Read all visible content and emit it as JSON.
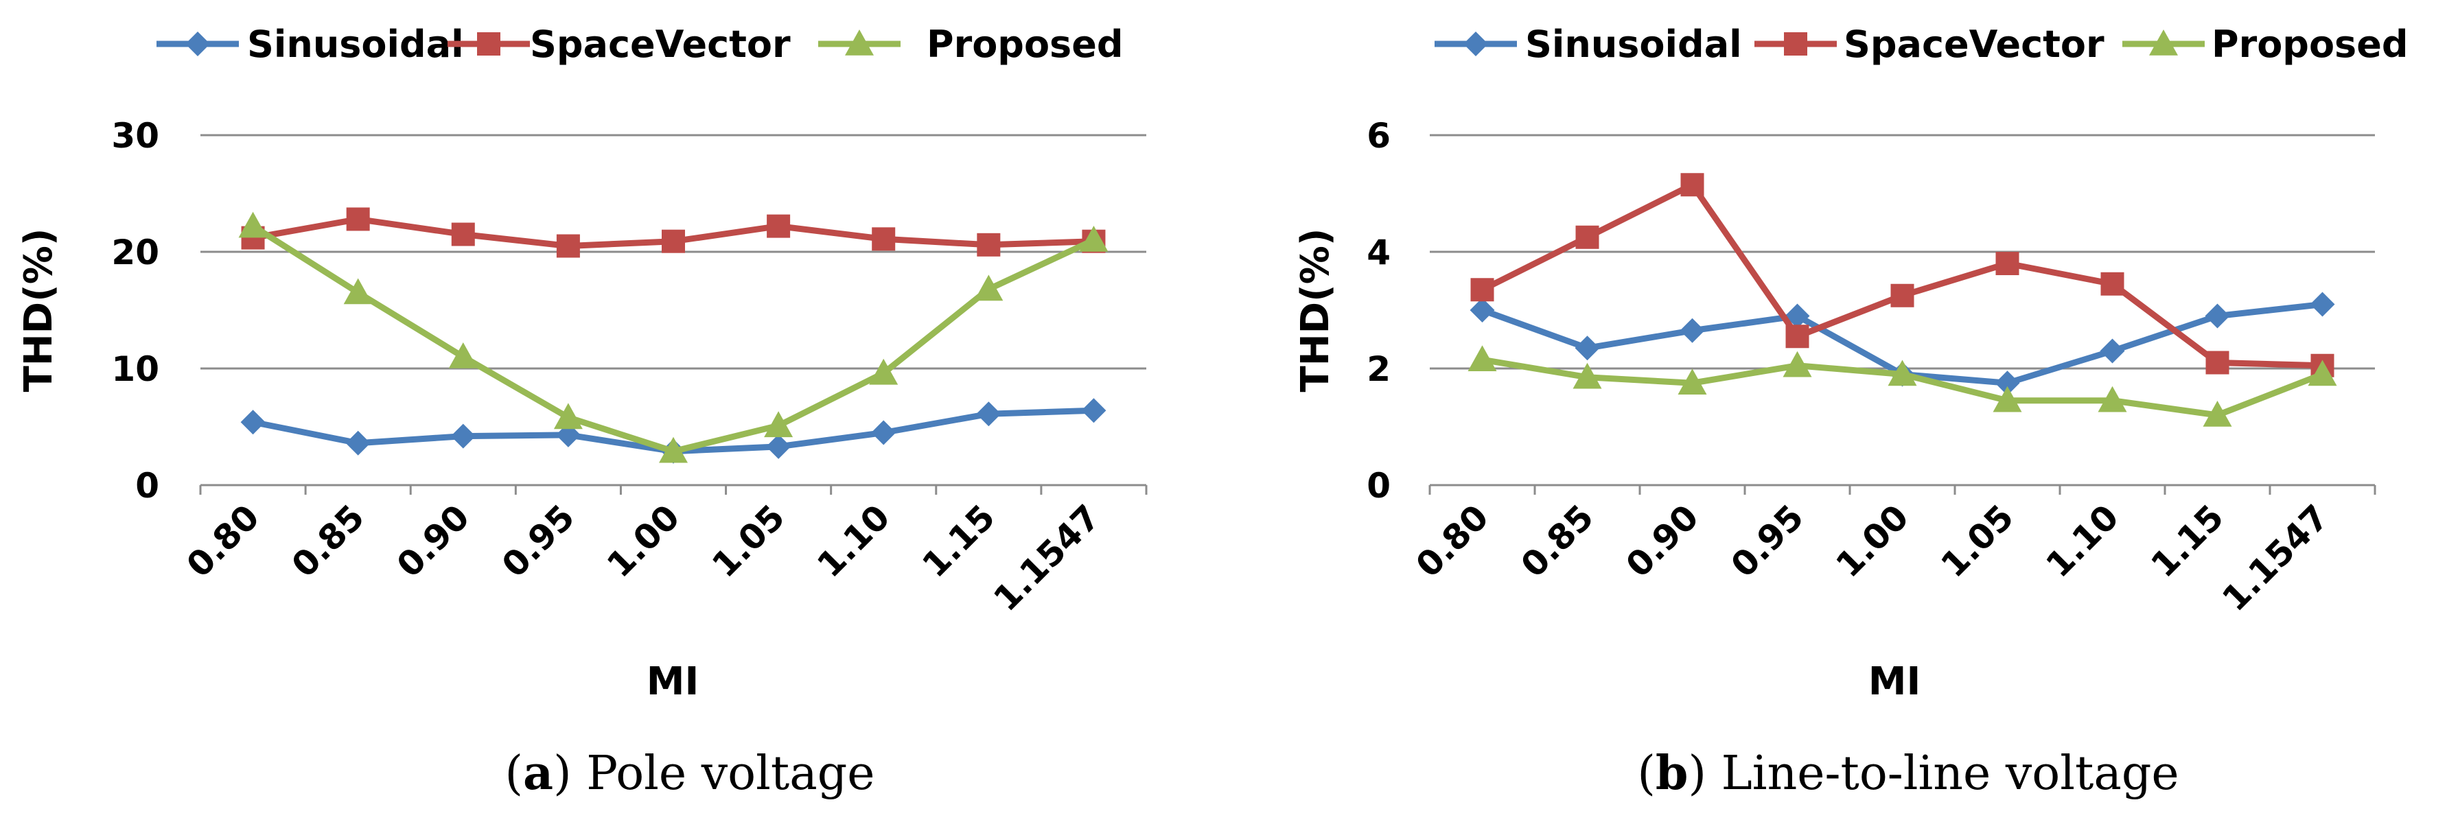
{
  "chart_data": [
    {
      "type": "line",
      "id": "a",
      "caption_letter": "a",
      "caption_text": "Pole voltage",
      "categories": [
        "0.80",
        "0.85",
        "0.90",
        "0.95",
        "1.00",
        "1.05",
        "1.10",
        "1.15",
        "1.1547"
      ],
      "xlabel": "MI",
      "ylabel": "THD(%)",
      "ylim": [
        0,
        30
      ],
      "yticks": [
        0,
        10,
        20,
        30
      ],
      "grid": true,
      "legend_position": "top",
      "series": [
        {
          "name": "Sinusoidal",
          "marker": "diamond",
          "color": "#4a7ebb",
          "values": [
            5.4,
            3.6,
            4.2,
            4.3,
            2.9,
            3.3,
            4.5,
            6.1,
            6.4
          ]
        },
        {
          "name": "SpaceVector",
          "marker": "square",
          "color": "#be4b48",
          "values": [
            21.2,
            22.8,
            21.5,
            20.5,
            20.9,
            22.2,
            21.1,
            20.6,
            20.9
          ]
        },
        {
          "name": "Proposed",
          "marker": "triangle",
          "color": "#98b954",
          "values": [
            22.2,
            16.5,
            11.0,
            5.8,
            2.9,
            5.1,
            9.6,
            16.8,
            21.0
          ]
        }
      ]
    },
    {
      "type": "line",
      "id": "b",
      "caption_letter": "b",
      "caption_text": "Line-to-line voltage",
      "categories": [
        "0.80",
        "0.85",
        "0.90",
        "0.95",
        "1.00",
        "1.05",
        "1.10",
        "1.15",
        "1.1547"
      ],
      "xlabel": "MI",
      "ylabel": "THD(%)",
      "ylim": [
        0,
        6
      ],
      "yticks": [
        0,
        2,
        4,
        6
      ],
      "grid": true,
      "legend_position": "top",
      "series": [
        {
          "name": "Sinusoidal",
          "marker": "diamond",
          "color": "#4a7ebb",
          "values": [
            3.0,
            2.35,
            2.65,
            2.9,
            1.9,
            1.75,
            2.3,
            2.9,
            3.1
          ]
        },
        {
          "name": "SpaceVector",
          "marker": "square",
          "color": "#be4b48",
          "values": [
            3.35,
            4.25,
            5.15,
            2.55,
            3.25,
            3.8,
            3.45,
            2.1,
            2.05
          ]
        },
        {
          "name": "Proposed",
          "marker": "triangle",
          "color": "#98b954",
          "values": [
            2.15,
            1.85,
            1.75,
            2.05,
            1.9,
            1.45,
            1.45,
            1.2,
            1.9
          ]
        }
      ]
    }
  ]
}
